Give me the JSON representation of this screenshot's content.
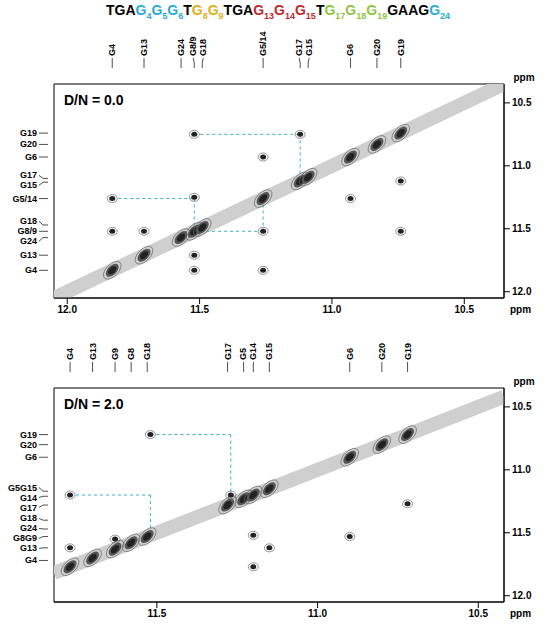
{
  "sequence": [
    {
      "text": "TGA",
      "color": "#000000"
    },
    {
      "text": "G",
      "sub": "4",
      "color": "#29abd4"
    },
    {
      "text": "G",
      "sub": "5",
      "color": "#29abd4"
    },
    {
      "text": "G",
      "sub": "6",
      "color": "#29abd4"
    },
    {
      "text": "T",
      "color": "#000000"
    },
    {
      "text": "G",
      "sub": "8",
      "color": "#e0b020"
    },
    {
      "text": "G",
      "sub": "9",
      "color": "#e0b020"
    },
    {
      "text": "TGA",
      "color": "#000000"
    },
    {
      "text": "G",
      "sub": "13",
      "color": "#c0282a"
    },
    {
      "text": "G",
      "sub": "14",
      "color": "#c0282a"
    },
    {
      "text": "G",
      "sub": "15",
      "color": "#c0282a"
    },
    {
      "text": "T",
      "color": "#000000"
    },
    {
      "text": "G",
      "sub": "17",
      "color": "#8dc63f"
    },
    {
      "text": "G",
      "sub": "18",
      "color": "#8dc63f"
    },
    {
      "text": "G",
      "sub": "19",
      "color": "#8dc63f"
    },
    {
      "text": "GAAG",
      "color": "#000000"
    },
    {
      "text": "G",
      "sub": "24",
      "color": "#29abd4"
    }
  ],
  "chart_data": [
    {
      "type": "scatter",
      "annotation": "D/N = 0.0",
      "x_label": "ppm",
      "y_label": "ppm",
      "xlim": [
        12.05,
        10.35
      ],
      "xticks": [
        {
          "value": 12,
          "label": "12.0"
        },
        11.5,
        {
          "value": 11,
          "label": "11.0"
        },
        10.5
      ],
      "ylim": [
        10.35,
        12.05
      ],
      "yticks": [
        10.5,
        {
          "value": 11,
          "label": "11.0"
        },
        11.5,
        {
          "value": 12,
          "label": "12.0"
        }
      ],
      "grid": false,
      "color": "#222222",
      "top_peaks": [
        {
          "label": "G4",
          "ppm": 11.83
        },
        {
          "label": "G13",
          "ppm": 11.71
        },
        {
          "label": "G24",
          "ppm": 11.57
        },
        {
          "label": "G8/9",
          "ppm": 11.52
        },
        {
          "label": "G18",
          "ppm": 11.49
        },
        {
          "label": "G5/14",
          "ppm": 11.26
        },
        {
          "label": "G17",
          "ppm": 11.12
        },
        {
          "label": "G15",
          "ppm": 11.09
        },
        {
          "label": "G6",
          "ppm": 10.93
        },
        {
          "label": "G20",
          "ppm": 10.83
        },
        {
          "label": "G19",
          "ppm": 10.74
        }
      ],
      "left_peaks": [
        {
          "label": "G19",
          "ppm": 10.74
        },
        {
          "label": "G20",
          "ppm": 10.83
        },
        {
          "label": "G6",
          "ppm": 10.93
        },
        {
          "label": "G17",
          "ppm": 11.1
        },
        {
          "label": "G15",
          "ppm": 11.13
        },
        {
          "label": "G5/14",
          "ppm": 11.26
        },
        {
          "label": "G18",
          "ppm": 11.47
        },
        {
          "label": "G8/9",
          "ppm": 11.52
        },
        {
          "label": "G24",
          "ppm": 11.57
        },
        {
          "label": "G13",
          "ppm": 11.71
        },
        {
          "label": "G4",
          "ppm": 11.83
        }
      ],
      "cross_peaks": [
        [
          11.83,
          11.52
        ],
        [
          11.71,
          11.52
        ],
        [
          11.52,
          10.75
        ],
        [
          11.52,
          11.25
        ],
        [
          11.26,
          11.52
        ],
        [
          11.52,
          11.71
        ],
        [
          11.52,
          11.83
        ],
        [
          11.26,
          10.93
        ],
        [
          11.12,
          10.75
        ],
        [
          10.74,
          11.12
        ],
        [
          10.93,
          11.26
        ],
        [
          10.74,
          11.52
        ],
        [
          11.26,
          11.83
        ],
        [
          11.83,
          11.26
        ]
      ],
      "connectivity": {
        "color": "#3ab0c8",
        "line_style": "dashed",
        "paths": [
          [
            [
              11.83,
              11.26
            ],
            [
              11.52,
              11.26
            ],
            [
              11.52,
              11.52
            ]
          ],
          [
            [
              11.52,
              10.75
            ],
            [
              11.12,
              10.75
            ],
            [
              11.12,
              11.12
            ]
          ],
          [
            [
              11.26,
              11.26
            ],
            [
              11.26,
              11.52
            ],
            [
              11.52,
              11.52
            ]
          ]
        ]
      }
    },
    {
      "type": "scatter",
      "annotation": "D/N = 2.0",
      "x_label": "ppm",
      "y_label": "ppm",
      "xlim": [
        11.82,
        10.42
      ],
      "xticks": [
        11.5,
        {
          "value": 11,
          "label": "11.0"
        },
        10.5
      ],
      "ylim": [
        10.35,
        12.05
      ],
      "yticks": [
        10.5,
        {
          "value": 11,
          "label": "11.0"
        },
        11.5,
        {
          "value": 12,
          "label": "12.0"
        }
      ],
      "grid": false,
      "color": "#222222",
      "top_peaks": [
        {
          "label": "G4",
          "ppm": 11.77
        },
        {
          "label": "G13",
          "ppm": 11.7
        },
        {
          "label": "G9",
          "ppm": 11.63
        },
        {
          "label": "G8",
          "ppm": 11.58
        },
        {
          "label": "G18",
          "ppm": 11.53
        },
        {
          "label": "G17",
          "ppm": 11.28
        },
        {
          "label": "G5",
          "ppm": 11.23
        },
        {
          "label": "G14",
          "ppm": 11.2
        },
        {
          "label": "G15",
          "ppm": 11.15
        },
        {
          "label": "G6",
          "ppm": 10.9
        },
        {
          "label": "G20",
          "ppm": 10.8
        },
        {
          "label": "G19",
          "ppm": 10.72
        }
      ],
      "left_peaks": [
        {
          "label": "G19",
          "ppm": 10.72
        },
        {
          "label": "G20",
          "ppm": 10.8
        },
        {
          "label": "G6",
          "ppm": 10.9
        },
        {
          "label": "G5G15",
          "ppm": 11.17
        },
        {
          "label": "G14",
          "ppm": 11.21
        },
        {
          "label": "G17",
          "ppm": 11.28
        },
        {
          "label": "G18",
          "ppm": 11.4
        },
        {
          "label": "G24",
          "ppm": 11.47
        },
        {
          "label": "G8G9",
          "ppm": 11.53
        },
        {
          "label": "G13",
          "ppm": 11.62
        },
        {
          "label": "G4",
          "ppm": 11.72
        }
      ],
      "cross_peaks": [
        [
          11.77,
          11.2
        ],
        [
          11.52,
          10.72
        ],
        [
          11.2,
          11.52
        ],
        [
          11.2,
          11.77
        ],
        [
          11.15,
          11.62
        ],
        [
          10.72,
          11.27
        ],
        [
          11.27,
          11.2
        ],
        [
          10.9,
          11.53
        ],
        [
          11.63,
          11.55
        ],
        [
          11.77,
          11.62
        ]
      ],
      "connectivity": {
        "color": "#3ab0c8",
        "line_style": "dashed",
        "paths": [
          [
            [
              11.77,
              11.2
            ],
            [
              11.52,
              11.2
            ],
            [
              11.52,
              11.52
            ]
          ],
          [
            [
              11.52,
              10.72
            ],
            [
              11.27,
              10.72
            ],
            [
              11.27,
              11.27
            ]
          ]
        ]
      }
    }
  ]
}
